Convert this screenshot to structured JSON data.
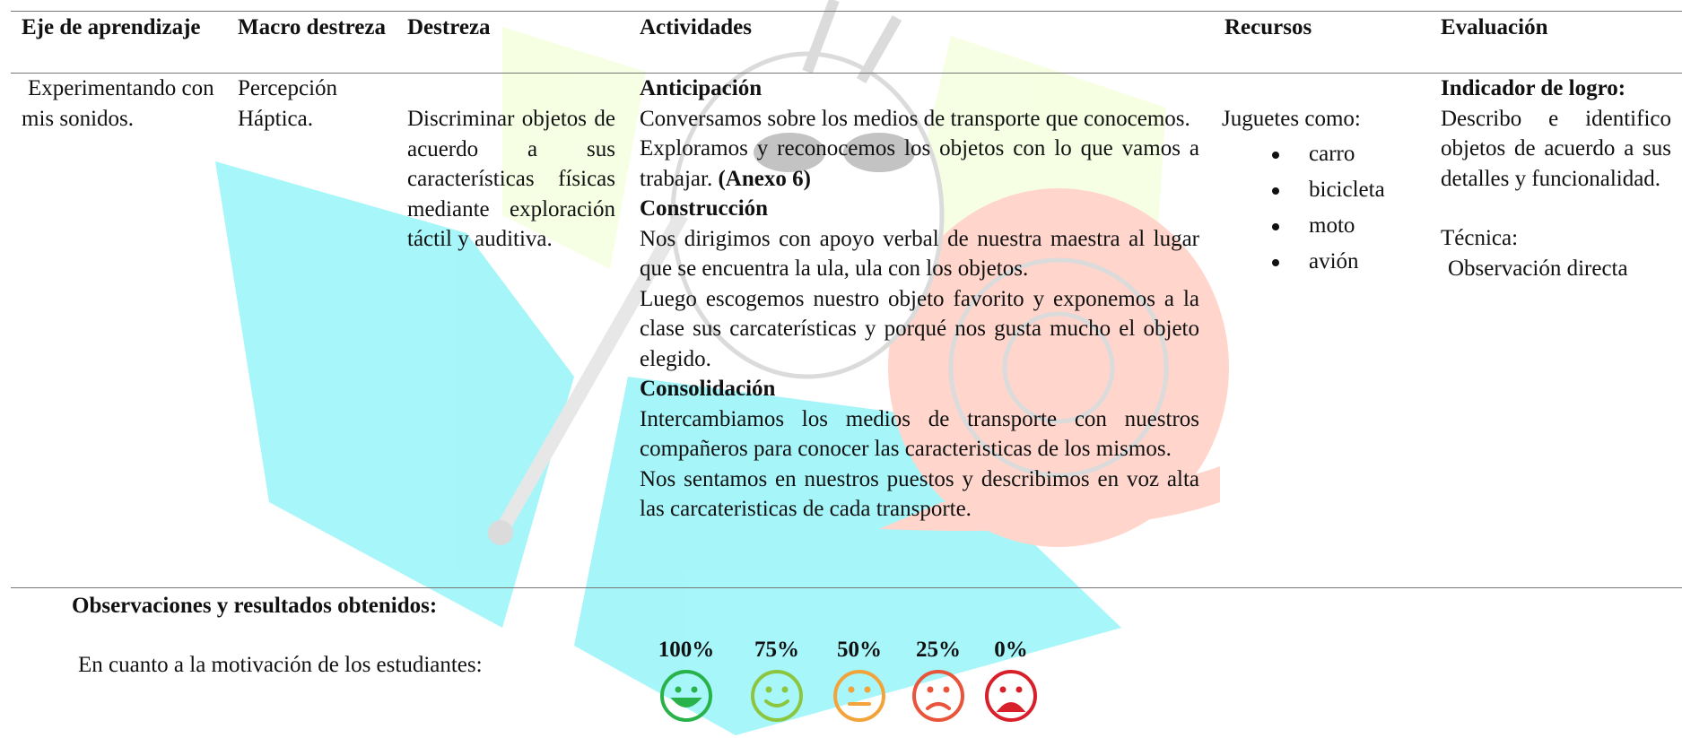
{
  "table": {
    "headers": [
      "Eje de aprendizaje",
      "Macro destreza",
      "Destreza",
      "Actividades",
      "Recursos",
      "Evaluación"
    ],
    "row": {
      "eje": "Experimentando con mis sonidos.",
      "macro": "Percepción Háptica.",
      "destreza": "Discriminar objetos de acuerdo a sus características físicas mediante exploración táctil y auditiva.",
      "actividades": [
        {
          "heading": "Anticipación",
          "paragraphs": [
            {
              "text": "Conversamos sobre los medios de transporte que conocemos."
            },
            {
              "text": "Exploramos y reconocemos los objetos con lo que vamos a trabajar.",
              "bold": "(Anexo 6)"
            }
          ]
        },
        {
          "heading": "Construcción",
          "paragraphs": [
            {
              "text": "Nos dirigimos con apoyo verbal de nuestra maestra al lugar que se encuentra la ula, ula con los objetos."
            },
            {
              "text": "Luego escogemos nuestro objeto favorito y exponemos a la clase sus carcaterísticas y porqué nos gusta mucho el objeto elegido."
            }
          ]
        },
        {
          "heading": "Consolidación",
          "paragraphs": [
            {
              "text": "Intercambiamos los medios de transporte con nuestros compañeros para conocer las caracteristicas de los mismos."
            },
            {
              "text": "Nos sentamos en nuestros puestos y describimos en voz alta las carcateristicas de cada transporte."
            }
          ]
        }
      ],
      "recursos": {
        "intro": "Juguetes como:",
        "items": [
          "carro",
          "bicicleta",
          "moto",
          "avión"
        ]
      },
      "evaluacion": {
        "indicator_title": "Indicador de logro:",
        "indicator": "Describo e identifico objetos de acuerdo a sus detalles y funcionalidad.",
        "technique_label": "Técnica:",
        "technique": "Observación directa"
      }
    }
  },
  "observations": {
    "title": "Observaciones y resultados obtenidos:",
    "motivation_label": "En cuanto a la motivación de los estudiantes:",
    "scale": [
      "100%",
      "75%",
      "50%",
      "25%",
      "0%"
    ]
  }
}
